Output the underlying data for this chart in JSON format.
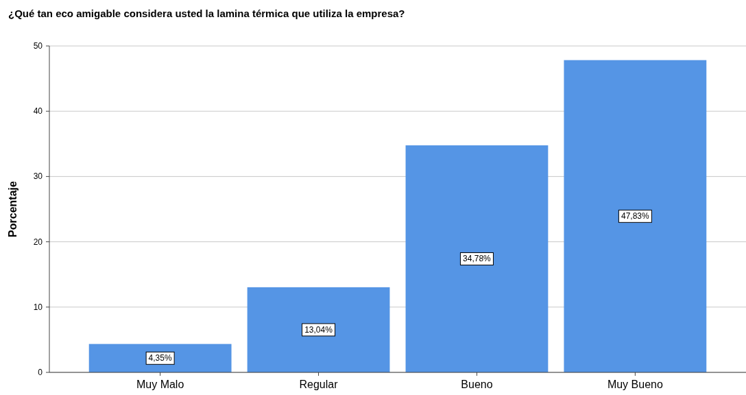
{
  "chart_data": {
    "type": "bar",
    "title": "¿Qué tan eco amigable considera usted la lamina térmica que utiliza la empresa?",
    "ylabel": "Porcentaje",
    "categories": [
      "Muy Malo",
      "Regular",
      "Bueno",
      "Muy Bueno"
    ],
    "values": [
      4.35,
      13.04,
      34.78,
      47.83
    ],
    "value_labels": [
      "4,35%",
      "13,04%",
      "34,78%",
      "47,83%"
    ],
    "color": "#5595e5",
    "ylim": [
      0,
      50
    ],
    "yticks": [
      0,
      10,
      20,
      30,
      40,
      50
    ],
    "grid": "y"
  }
}
